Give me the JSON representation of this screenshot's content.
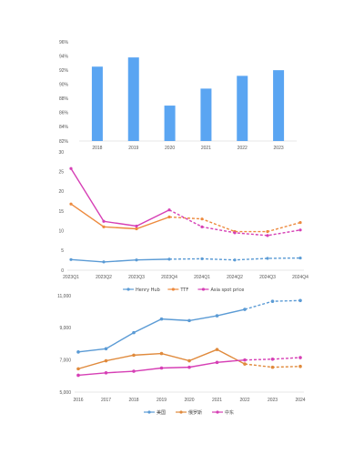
{
  "chart_data": [
    {
      "type": "bar",
      "title": "",
      "xlabel": "",
      "ylabel": "",
      "categories": [
        "2018",
        "2019",
        "2020",
        "2021",
        "2022",
        "2023"
      ],
      "values": [
        92.5,
        93.8,
        87.0,
        89.4,
        91.2,
        92.0
      ],
      "ylim": [
        82,
        96
      ],
      "yticks": [
        "96%",
        "94%",
        "92%",
        "90%",
        "88%",
        "86%",
        "84%",
        "82%"
      ],
      "colors": {
        "bar": "#5aa5f2"
      },
      "grid": false,
      "legend": null
    },
    {
      "type": "line",
      "title": "",
      "xlabel": "",
      "ylabel": "",
      "categories": [
        "2023Q1",
        "2023Q2",
        "2023Q3",
        "2023Q4",
        "2024Q1",
        "2024Q2",
        "2024Q3",
        "2024Q4"
      ],
      "ylim": [
        0,
        30
      ],
      "yticks": [
        "30",
        "25",
        "20",
        "15",
        "10",
        "5",
        "0"
      ],
      "forecast_from_index": 3,
      "series": [
        {
          "name": "Henry Hub",
          "color": "#5b9bd5",
          "values": [
            2.7,
            2.1,
            2.6,
            2.8,
            2.9,
            2.6,
            3.0,
            3.1
          ]
        },
        {
          "name": "TTF",
          "color": "#ed8a3e",
          "values": [
            16.8,
            11.0,
            10.5,
            13.5,
            13.0,
            9.8,
            9.8,
            12.1
          ]
        },
        {
          "name": "Asia spot price",
          "color": "#d63fb5",
          "values": [
            25.8,
            12.4,
            11.2,
            15.3,
            11.0,
            9.5,
            8.8,
            10.2
          ]
        }
      ],
      "legend": "bottom",
      "grid": false
    },
    {
      "type": "line",
      "title": "",
      "xlabel": "",
      "ylabel": "",
      "categories": [
        "2016",
        "2017",
        "2018",
        "2019",
        "2020",
        "2021",
        "2022",
        "2023",
        "2024"
      ],
      "ylim": [
        5000,
        11000
      ],
      "yticks": [
        "11,000",
        "9,000",
        "7,000",
        "5,000"
      ],
      "forecast_from_index": 6,
      "series": [
        {
          "name": "美国",
          "color": "#5b9bd5",
          "values": [
            7500,
            7700,
            8700,
            9550,
            9450,
            9750,
            10150,
            10650,
            10700
          ]
        },
        {
          "name": "俄罗斯",
          "color": "#e08a3c",
          "values": [
            6450,
            6950,
            7300,
            7400,
            6950,
            7650,
            6750,
            6550,
            6600
          ]
        },
        {
          "name": "中东",
          "color": "#d63fb5",
          "values": [
            6050,
            6200,
            6300,
            6500,
            6550,
            6850,
            7000,
            7050,
            7150
          ]
        }
      ],
      "legend": "bottom",
      "grid": false
    }
  ]
}
